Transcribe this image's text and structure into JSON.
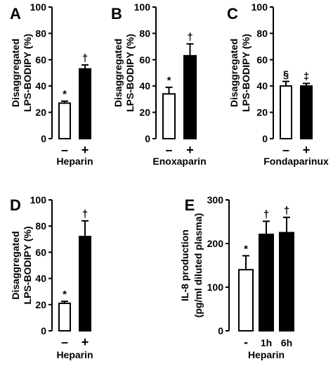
{
  "chart_data": [
    {
      "type": "bar",
      "panel": "A",
      "ylabel_lines": [
        "Disaggregated",
        "LPS-BODIPY (%)"
      ],
      "xlabel": "Heparin",
      "ylim": [
        0,
        100
      ],
      "yticks": [
        "0",
        "20",
        "40",
        "60",
        "80",
        "100"
      ],
      "categories": [
        "–",
        "+"
      ],
      "values": [
        27,
        53
      ],
      "errors": [
        1.5,
        3
      ],
      "fills": [
        "white",
        "black"
      ],
      "marks": [
        "*",
        "†"
      ]
    },
    {
      "type": "bar",
      "panel": "B",
      "ylabel_lines": [
        "Disaggregated",
        "LPS-BODIPY (%)"
      ],
      "xlabel": "Enoxaparin",
      "ylim": [
        0,
        100
      ],
      "yticks": [
        "0",
        "20",
        "40",
        "60",
        "80",
        "100"
      ],
      "categories": [
        "–",
        "+"
      ],
      "values": [
        34,
        63
      ],
      "errors": [
        5,
        9
      ],
      "fills": [
        "white",
        "black"
      ],
      "marks": [
        "*",
        "†"
      ]
    },
    {
      "type": "bar",
      "panel": "C",
      "ylabel_lines": [
        "Disaggregated",
        "LPS-BODIPY (%)"
      ],
      "xlabel": "Fondaparinux",
      "ylim": [
        0,
        100
      ],
      "yticks": [
        "0",
        "20",
        "40",
        "60",
        "80",
        "100"
      ],
      "categories": [
        "–",
        "+"
      ],
      "values": [
        40,
        40
      ],
      "errors": [
        3.5,
        2
      ],
      "fills": [
        "white",
        "black"
      ],
      "marks": [
        "§",
        "‡"
      ]
    },
    {
      "type": "bar",
      "panel": "D",
      "ylabel_lines": [
        "Disaggregated",
        "LPS-BODIPY (%)"
      ],
      "xlabel": "Heparin",
      "ylim": [
        0,
        100
      ],
      "yticks": [
        "0",
        "20",
        "40",
        "60",
        "80",
        "100"
      ],
      "categories": [
        "–",
        "+"
      ],
      "values": [
        21,
        72
      ],
      "errors": [
        1.5,
        12
      ],
      "fills": [
        "white",
        "black"
      ],
      "marks": [
        "*",
        "†"
      ]
    },
    {
      "type": "bar",
      "panel": "E",
      "ylabel_lines": [
        "IL-8 production",
        "(pg/ml diluted plasma)"
      ],
      "xlabel": "Heparin",
      "ylim": [
        0,
        300
      ],
      "yticks": [
        "0",
        "100",
        "200",
        "300"
      ],
      "categories": [
        "-",
        "1h",
        "6h"
      ],
      "values": [
        140,
        221,
        225
      ],
      "errors": [
        32,
        30,
        35
      ],
      "fills": [
        "white",
        "black",
        "black"
      ],
      "marks": [
        "*",
        "†",
        "†"
      ]
    }
  ]
}
